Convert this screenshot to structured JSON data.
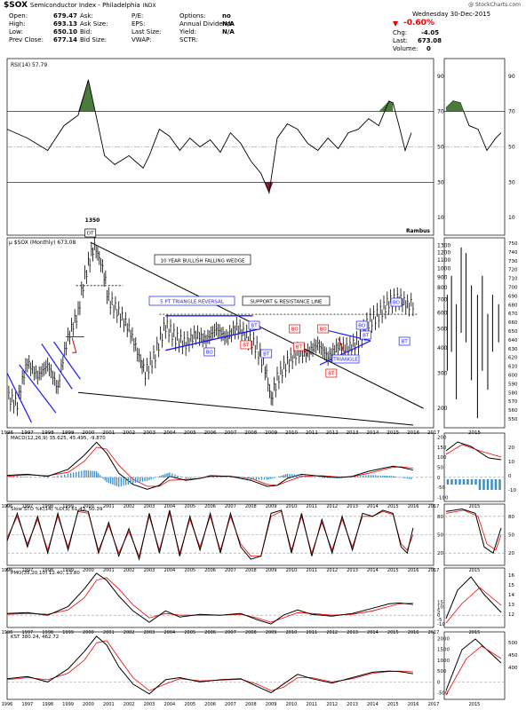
{
  "header": {
    "symbol": "$SOX",
    "name": "Semiconductor Index - Philadelphia",
    "exchange": "INDX",
    "copyright": "@ StockCharts.com",
    "col1": [
      [
        "Open:",
        "679.47"
      ],
      [
        "High:",
        "693.13"
      ],
      [
        "Low:",
        "650.10"
      ],
      [
        "Prev Close:",
        "677.14"
      ]
    ],
    "col2": [
      "Ask:",
      "Ask Size:",
      "Bid:",
      "Bid Size:"
    ],
    "col3": [
      [
        "P/E:",
        ""
      ],
      [
        "EPS:",
        ""
      ],
      [
        "Last Size:",
        ""
      ],
      [
        "VWAP:",
        ""
      ]
    ],
    "col4": [
      [
        "Options:",
        "no"
      ],
      [
        "Annual Dividend:",
        "N/A"
      ],
      [
        "Yield:",
        "N/A"
      ],
      [
        "SCTR:",
        ""
      ]
    ],
    "date": "Wednesday  30-Dec-2015",
    "change_pct": "-0.60%",
    "chg_label": "Chg:",
    "chg": "-4.05",
    "last_label": "Last:",
    "last": "673.08",
    "volume_label": "Volume:",
    "volume": "0"
  },
  "colors": {
    "price_bar": "#000000",
    "annotation": "#1a1aff",
    "red": "#e00000",
    "overbought": "#4a7a3c",
    "oversold": "#8a2030",
    "macd_hist": "#3a8fc8"
  },
  "labels": {
    "rambus": "Rambus",
    "wedge": "10 YEAR BULLISH FALLING WEDGE",
    "triangle_reversal": "5 PT TRIANGLE REVERSAL",
    "support_resistance": "SUPPORT & RESISTANCE LINE",
    "triangle": "TRIANGLE",
    "peak": "1350",
    "dt": "DT",
    "bt": "BT",
    "bo": "BO"
  },
  "chart_data": [
    {
      "type": "line",
      "title": "RSI(14) 57.79",
      "y_ticks": [
        90,
        70,
        50,
        30,
        10
      ],
      "ylim": [
        0,
        100
      ],
      "x": [
        1996.0,
        1997.0,
        1998.0,
        1998.8,
        1999.5,
        2000.0,
        2000.3,
        2000.8,
        2001.3,
        2002.0,
        2002.7,
        2003.0,
        2003.5,
        2004.0,
        2004.5,
        2005.0,
        2005.5,
        2006.0,
        2006.5,
        2007.0,
        2007.5,
        2008.0,
        2008.5,
        2008.9,
        2009.3,
        2009.8,
        2010.3,
        2010.8,
        2011.3,
        2011.8,
        2012.3,
        2012.8,
        2013.3,
        2013.8,
        2014.3,
        2014.8,
        2015.0,
        2015.3,
        2015.6,
        2015.9
      ],
      "y": [
        60,
        55,
        48,
        62,
        68,
        88,
        72,
        45,
        40,
        45,
        38,
        45,
        60,
        56,
        48,
        55,
        50,
        54,
        47,
        58,
        52,
        42,
        35,
        24,
        55,
        63,
        60,
        52,
        48,
        55,
        49,
        58,
        60,
        66,
        62,
        76,
        75,
        62,
        48,
        58
      ],
      "overbought": 70,
      "midline": 50,
      "oversold": 30
    },
    {
      "type": "bar",
      "title": "$SOX (Monthly) 673.08",
      "scale": "log",
      "y_ticks": [
        1300,
        1200,
        1100,
        1000,
        900,
        800,
        700,
        600,
        500,
        400,
        300,
        200
      ],
      "x_ticks": [
        "1996",
        "1997",
        "1998",
        "1999",
        "2000",
        "2001",
        "2002",
        "2003",
        "2004",
        "2005",
        "2006",
        "2007",
        "2008",
        "2009",
        "2010",
        "2011",
        "2012",
        "2013",
        "2014",
        "2015",
        "2016",
        "2017"
      ],
      "x": [
        1996.0,
        1996.5,
        1997.0,
        1997.5,
        1998.0,
        1998.5,
        1999.0,
        1999.5,
        2000.0,
        2000.3,
        2000.7,
        2001.0,
        2001.5,
        2002.0,
        2002.5,
        2002.8,
        2003.3,
        2003.8,
        2004.3,
        2004.8,
        2005.3,
        2005.8,
        2006.3,
        2006.8,
        2007.3,
        2007.8,
        2008.3,
        2008.7,
        2009.0,
        2009.3,
        2009.8,
        2010.3,
        2010.8,
        2011.3,
        2011.8,
        2012.3,
        2012.8,
        2013.3,
        2013.8,
        2014.3,
        2014.8,
        2015.3,
        2015.8,
        2015.99
      ],
      "close": [
        230,
        210,
        340,
        290,
        330,
        250,
        450,
        600,
        1050,
        1300,
        1000,
        700,
        600,
        500,
        360,
        300,
        370,
        520,
        450,
        420,
        470,
        440,
        500,
        450,
        510,
        460,
        400,
        320,
        220,
        280,
        340,
        380,
        380,
        420,
        360,
        410,
        400,
        430,
        540,
        590,
        680,
        710,
        650,
        673
      ]
    },
    {
      "type": "line",
      "title": "MACD(12,26,9) 35.625, 45.495, -9.870",
      "y_ticks": [
        200,
        150,
        100,
        50,
        0,
        -50,
        -100
      ],
      "x": [
        1996.0,
        1997.0,
        1998.0,
        1999.0,
        1999.8,
        2000.4,
        2000.9,
        2001.5,
        2002.2,
        2002.9,
        2003.5,
        2004.0,
        2004.8,
        2005.5,
        2006.0,
        2007.0,
        2008.0,
        2008.8,
        2009.3,
        2009.8,
        2010.5,
        2011.5,
        2012.3,
        2013.0,
        2013.8,
        2014.5,
        2015.0,
        2015.4,
        2015.99
      ],
      "macd": [
        10,
        15,
        5,
        40,
        110,
        175,
        120,
        20,
        -35,
        -60,
        -40,
        5,
        -15,
        -5,
        8,
        5,
        -15,
        -45,
        -40,
        -5,
        15,
        5,
        -2,
        5,
        30,
        45,
        55,
        50,
        36
      ],
      "signal": [
        5,
        12,
        8,
        25,
        80,
        150,
        140,
        60,
        -10,
        -45,
        -45,
        -15,
        -10,
        -5,
        4,
        5,
        -5,
        -35,
        -40,
        -20,
        5,
        8,
        2,
        3,
        20,
        38,
        50,
        52,
        45
      ],
      "histogram_last": -9.87
    },
    {
      "type": "line",
      "title": "Slow STO %K(14) %D(3) 61.43, 50.39",
      "y_ticks": [
        80,
        50,
        20
      ],
      "overbought": 80,
      "oversold": 20,
      "x": [
        1996.0,
        1996.5,
        1997.0,
        1997.5,
        1998.0,
        1998.5,
        1999.0,
        1999.5,
        2000.0,
        2000.5,
        2001.0,
        2001.5,
        2002.0,
        2002.5,
        2003.0,
        2003.5,
        2004.0,
        2004.5,
        2005.0,
        2005.5,
        2006.0,
        2006.5,
        2007.0,
        2007.5,
        2008.0,
        2008.5,
        2009.0,
        2009.5,
        2010.0,
        2010.5,
        2011.0,
        2011.5,
        2012.0,
        2012.5,
        2013.0,
        2013.5,
        2014.0,
        2014.5,
        2015.0,
        2015.4,
        2015.7,
        2015.99
      ],
      "k": [
        40,
        85,
        30,
        80,
        20,
        85,
        25,
        90,
        88,
        20,
        70,
        15,
        60,
        10,
        85,
        20,
        90,
        15,
        80,
        25,
        85,
        20,
        85,
        30,
        10,
        15,
        85,
        90,
        20,
        85,
        15,
        75,
        20,
        80,
        25,
        85,
        80,
        90,
        85,
        30,
        20,
        61
      ],
      "d": [
        45,
        80,
        35,
        75,
        25,
        80,
        30,
        88,
        85,
        25,
        65,
        20,
        55,
        15,
        80,
        25,
        85,
        20,
        75,
        30,
        80,
        25,
        80,
        35,
        15,
        15,
        80,
        88,
        25,
        80,
        20,
        70,
        25,
        75,
        30,
        80,
        80,
        88,
        83,
        35,
        25,
        50
      ]
    },
    {
      "type": "line",
      "title": "PMO(35,20,10) 12.40, 13.80",
      "y_ticks": [
        15,
        10,
        5,
        0,
        -5,
        -10
      ],
      "x": [
        1996.0,
        1997.0,
        1998.0,
        1999.0,
        1999.8,
        2000.4,
        2000.9,
        2001.5,
        2002.2,
        2003.0,
        2003.8,
        2004.5,
        2005.5,
        2006.5,
        2007.5,
        2008.3,
        2009.0,
        2009.6,
        2010.3,
        2011.0,
        2012.0,
        2013.0,
        2014.0,
        2014.8,
        2015.3,
        2015.99
      ],
      "pmo": [
        2,
        3,
        0,
        10,
        30,
        48,
        40,
        22,
        5,
        -8,
        5,
        -2,
        1,
        0,
        2,
        -5,
        -10,
        0,
        6,
        1,
        -1,
        2,
        8,
        13,
        14,
        12.4
      ],
      "signal": [
        1,
        2,
        1,
        6,
        20,
        40,
        43,
        30,
        12,
        -3,
        2,
        0,
        0,
        0,
        1,
        -3,
        -8,
        -3,
        3,
        2,
        0,
        1,
        5,
        10,
        13,
        13.8
      ]
    },
    {
      "type": "line",
      "title": "KST 380.24, 462.72",
      "y_ticks": [
        2000,
        1500,
        1000,
        500,
        0,
        -500
      ],
      "x": [
        1996.0,
        1997.0,
        1998.0,
        1999.0,
        1999.8,
        2000.4,
        2000.9,
        2001.5,
        2002.2,
        2003.0,
        2003.8,
        2004.5,
        2005.5,
        2006.5,
        2007.5,
        2008.3,
        2009.0,
        2009.6,
        2010.3,
        2011.0,
        2012.0,
        2013.0,
        2014.0,
        2014.8,
        2015.3,
        2015.99
      ],
      "kst": [
        150,
        250,
        0,
        600,
        1400,
        2100,
        1700,
        700,
        -100,
        -550,
        100,
        200,
        0,
        100,
        150,
        -200,
        -500,
        -100,
        350,
        150,
        -50,
        200,
        450,
        500,
        480,
        380
      ],
      "signal": [
        100,
        200,
        100,
        400,
        1000,
        1800,
        1900,
        1100,
        200,
        -400,
        -100,
        150,
        50,
        80,
        120,
        -100,
        -400,
        -250,
        200,
        200,
        0,
        150,
        400,
        480,
        500,
        463
      ]
    }
  ],
  "side_panel": {
    "x_label": "2015",
    "price_ticks": [
      "750",
      "740",
      "730",
      "720",
      "710",
      "700",
      "690",
      "680",
      "670",
      "660",
      "650",
      "640",
      "630",
      "620",
      "610",
      "600",
      "590",
      "580",
      "570",
      "560",
      "550"
    ],
    "rsi_ticks": [
      "70",
      "50"
    ],
    "macd_ticks": [
      "20",
      "10",
      "0",
      "-10"
    ],
    "sto_ticks": [
      "80",
      "50",
      "20"
    ],
    "pmo_ticks": [
      "16",
      "15",
      "14",
      "13",
      "12"
    ],
    "kst_ticks": [
      "500",
      "450",
      "400"
    ]
  }
}
